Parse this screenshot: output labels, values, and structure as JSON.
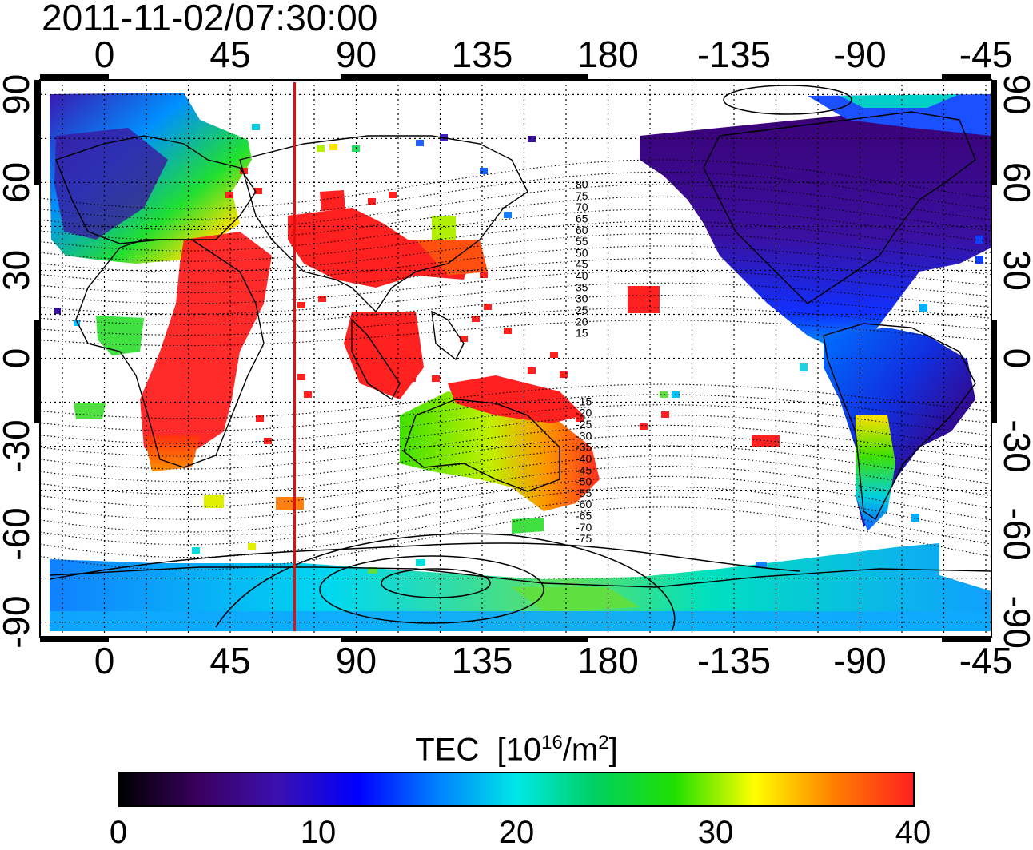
{
  "timestamp": "2011-11-02/07:30:00",
  "map": {
    "projection": "equirectangular",
    "longitude_range": [
      -23,
      317
    ],
    "latitude_range": [
      -95,
      95
    ],
    "lon_ticks": [
      "0",
      "45",
      "90",
      "135",
      "180",
      "-135",
      "-90",
      "-45"
    ],
    "lat_ticks": [
      "90",
      "60",
      "30",
      "0",
      "-30",
      "-60",
      "-90"
    ],
    "mlat_labels": [
      "80",
      "75",
      "70",
      "65",
      "60",
      "55",
      "50",
      "45",
      "40",
      "35",
      "30",
      "25",
      "20",
      "15",
      "-15",
      "-20",
      "-25",
      "-30",
      "-35",
      "-40",
      "-45",
      "-50",
      "-55",
      "-60",
      "-65",
      "-70",
      "-75"
    ],
    "terminator_longitude": 68,
    "colors": {
      "terminator": "#e01010",
      "graticule": "#000000",
      "coast": "#000000"
    }
  },
  "colorbar": {
    "title": "TEC",
    "unit_base": "[10",
    "unit_exp": "16",
    "unit_mid": "/m",
    "unit_exp2": "2",
    "unit_end": "]",
    "range": [
      0,
      40
    ],
    "ticks": [
      "0",
      "10",
      "20",
      "30",
      "40"
    ],
    "colormap": [
      "#000000",
      "#3a0060",
      "#3a10b0",
      "#0000ff",
      "#0080ff",
      "#00e8e8",
      "#00d060",
      "#20e000",
      "#ffff00",
      "#ff8000",
      "#ff2020"
    ]
  }
}
